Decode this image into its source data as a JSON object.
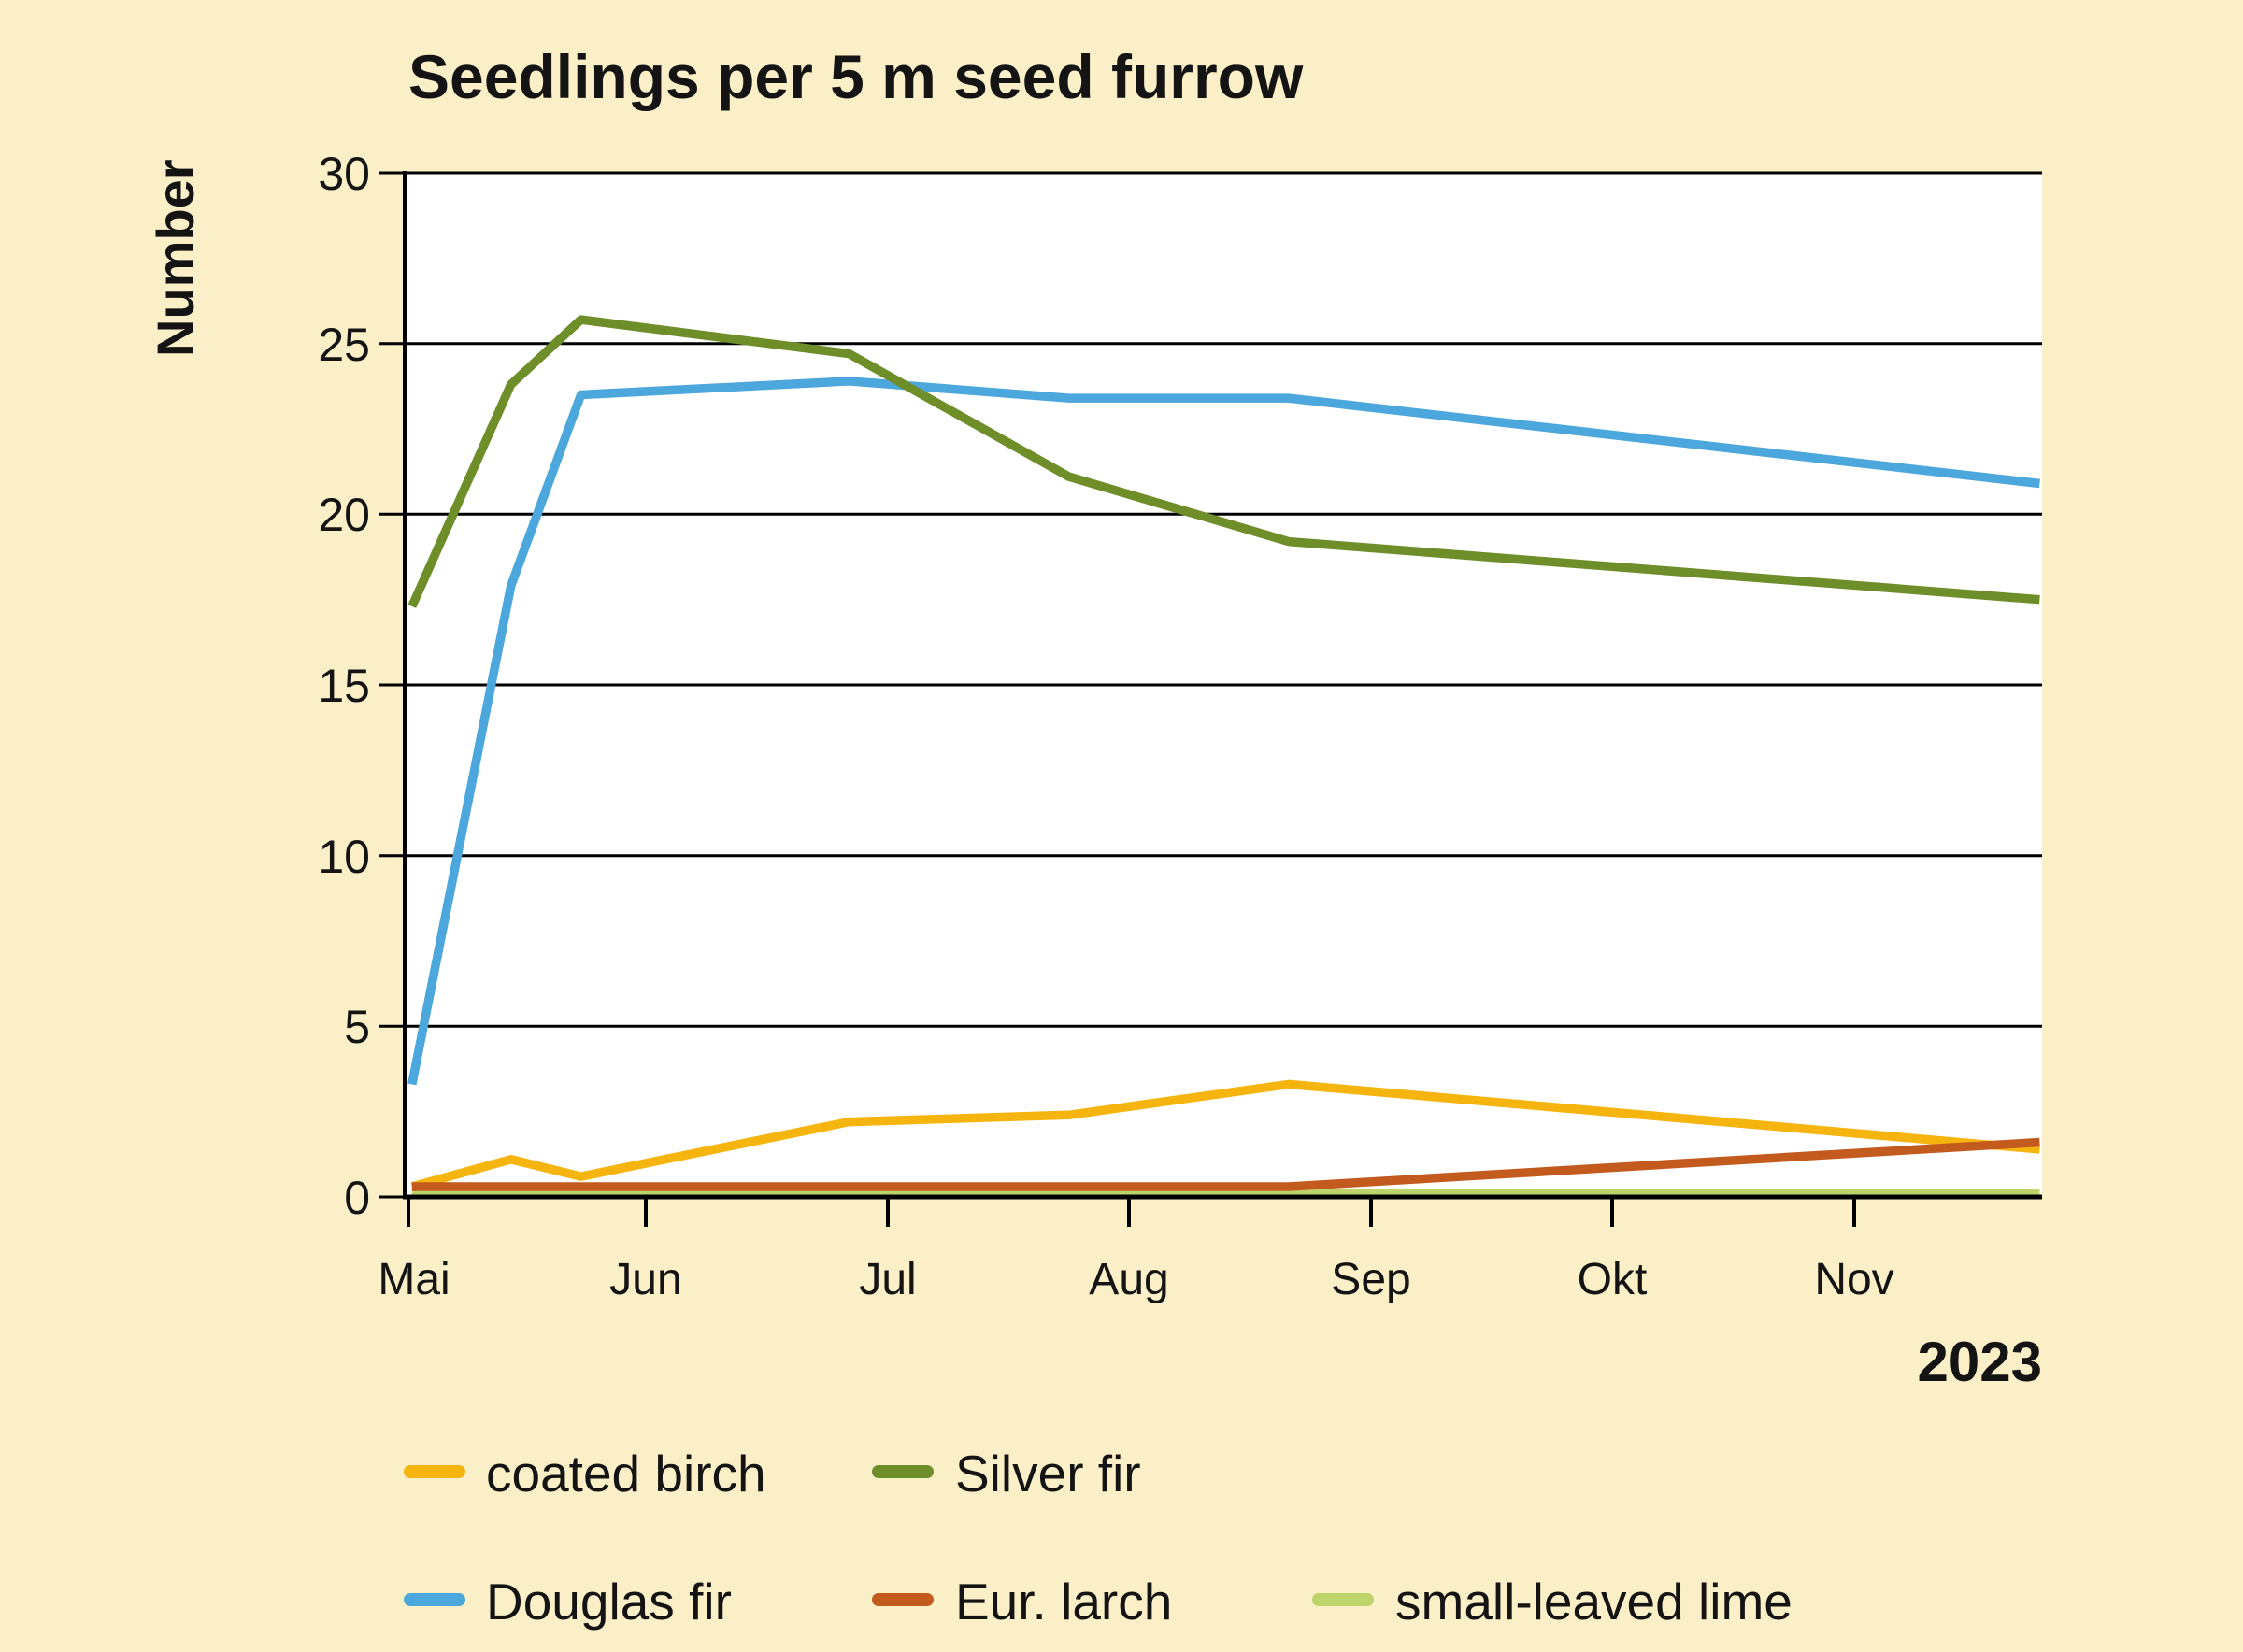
{
  "title": "Seedlings per 5 m seed furrow",
  "y_axis": {
    "label": "Number",
    "ticks": [
      "0",
      "5",
      "10",
      "15",
      "20",
      "25",
      "30"
    ]
  },
  "x_axis": {
    "ticks": [
      "Mai",
      "Jun",
      "Jul",
      "Aug",
      "Sep",
      "Okt",
      "Nov"
    ],
    "year_label": "2023"
  },
  "colors": {
    "coated_birch": "#F6B40F",
    "silver_fir": "#6E8E2A",
    "douglas_fir": "#4BA7DC",
    "eur_larch": "#C35A1E",
    "small_leaved_lime": "#BCD46A",
    "background": "#FAEFC7",
    "plot_background": "#FFFFFF",
    "axis": "#000000"
  },
  "legend": [
    {
      "label": "coated birch",
      "color": "coated_birch"
    },
    {
      "label": "Silver fir",
      "color": "silver_fir"
    },
    {
      "label": "Douglas fir",
      "color": "douglas_fir"
    },
    {
      "label": "Eur. larch",
      "color": "eur_larch"
    },
    {
      "label": "small-leaved lime",
      "color": "small_leaved_lime"
    }
  ],
  "chart_data": {
    "type": "line",
    "title": "Seedlings per 5 m seed furrow",
    "ylabel": "Number",
    "year": "2023",
    "xlim": [
      5.0,
      11.78
    ],
    "ylim": [
      0,
      30
    ],
    "grid": "horizontal",
    "legend_position": "bottom",
    "x_tick_months": [
      5,
      6,
      7,
      8,
      9,
      10,
      11
    ],
    "x_tick_labels": [
      "Mai",
      "Jun",
      "Jul",
      "Aug",
      "Sep",
      "Okt",
      "Nov"
    ],
    "y_ticks": [
      0,
      5,
      10,
      15,
      20,
      25,
      30
    ],
    "x_months": [
      5.03,
      5.44,
      5.73,
      6.84,
      7.75,
      8.66,
      11.77
    ],
    "series": [
      {
        "name": "coated birch",
        "color": "coated_birch",
        "values": [
          0.3,
          1.1,
          0.6,
          2.2,
          2.4,
          3.3,
          1.4
        ]
      },
      {
        "name": "Silver fir",
        "color": "silver_fir",
        "values": [
          17.3,
          23.8,
          25.7,
          24.7,
          21.1,
          19.2,
          17.5
        ]
      },
      {
        "name": "Douglas fir",
        "color": "douglas_fir",
        "values": [
          3.3,
          17.9,
          23.5,
          23.9,
          23.4,
          23.4,
          20.9
        ]
      },
      {
        "name": "Eur. larch",
        "color": "eur_larch",
        "values": [
          0.3,
          0.3,
          0.3,
          0.3,
          0.3,
          0.3,
          1.6
        ]
      },
      {
        "name": "small-leaved lime",
        "color": "small_leaved_lime",
        "values": [
          0.1,
          0.1,
          0.1,
          0.1,
          0.1,
          0.1,
          0.1
        ]
      }
    ],
    "draw_order": [
      2,
      1,
      0,
      4,
      3
    ]
  }
}
